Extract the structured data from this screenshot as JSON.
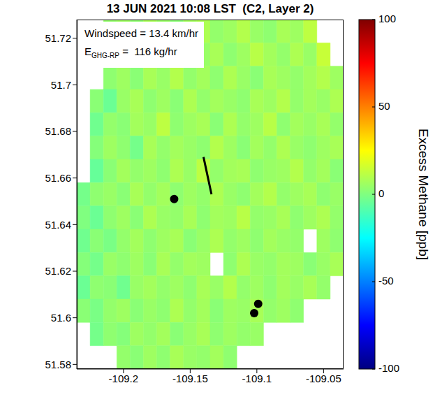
{
  "chart_data": {
    "type": "heatmap",
    "title": "13 JUN 2021 10:08 LST  (C2, Layer 2)",
    "annotations": [
      "Windspeed = 13.4 km/hr",
      {
        "text": "E",
        "subscript": "GHG-RP",
        "suffix": " =  116 kg/hr"
      }
    ],
    "xlim": [
      -109.235,
      -109.035
    ],
    "xticks": [
      -109.2,
      -109.15,
      -109.1,
      -109.05
    ],
    "ylim": [
      51.578,
      51.728
    ],
    "yticks": [
      51.58,
      51.6,
      51.62,
      51.64,
      51.66,
      51.68,
      51.7,
      51.72
    ],
    "grid": false,
    "cells": {
      "x": [
        -109.23,
        -109.22,
        -109.21,
        -109.2,
        -109.19,
        -109.18,
        -109.17,
        -109.16,
        -109.15,
        -109.14,
        -109.13,
        -109.12,
        -109.11,
        -109.1,
        -109.09,
        -109.08,
        -109.07,
        -109.06,
        -109.05,
        -109.04
      ],
      "y": [
        51.723,
        51.713,
        51.703,
        51.693,
        51.683,
        51.673,
        51.663,
        51.653,
        51.643,
        51.633,
        51.623,
        51.613,
        51.603,
        51.593,
        51.583
      ],
      "values": [
        [
          null,
          null,
          4,
          6,
          3,
          8,
          5,
          2,
          7,
          9,
          4,
          6,
          10,
          5,
          3,
          8,
          6,
          12,
          null,
          null
        ],
        [
          null,
          null,
          5,
          3,
          7,
          4,
          9,
          6,
          2,
          5,
          8,
          3,
          6,
          11,
          7,
          4,
          9,
          5,
          14,
          null
        ],
        [
          null,
          null,
          3,
          6,
          2,
          8,
          5,
          10,
          4,
          7,
          3,
          9,
          5,
          2,
          8,
          6,
          4,
          7,
          10,
          6
        ],
        [
          null,
          2,
          -4,
          5,
          8,
          3,
          6,
          2,
          9,
          4,
          7,
          5,
          3,
          8,
          6,
          10,
          4,
          7,
          5,
          9
        ],
        [
          null,
          -3,
          4,
          2,
          7,
          5,
          12,
          3,
          6,
          8,
          2,
          9,
          4,
          6,
          11,
          3,
          7,
          5,
          8,
          4
        ],
        [
          null,
          1,
          6,
          3,
          -2,
          8,
          4,
          7,
          5,
          3,
          10,
          6,
          2,
          7,
          4,
          9,
          5,
          3,
          6,
          8
        ],
        [
          null,
          -5,
          2,
          7,
          4,
          6,
          3,
          9,
          5,
          12,
          4,
          7,
          8,
          3,
          5,
          6,
          10,
          4,
          7,
          2
        ],
        [
          -2,
          3,
          5,
          2,
          8,
          4,
          7,
          3,
          6,
          4,
          9,
          5,
          3,
          7,
          10,
          4,
          6,
          8,
          3,
          5
        ],
        [
          0,
          -4,
          3,
          6,
          2,
          9,
          5,
          4,
          8,
          3,
          7,
          6,
          11,
          4,
          5,
          8,
          3,
          6,
          9,
          4
        ],
        [
          -3,
          2,
          -1,
          4,
          7,
          3,
          6,
          8,
          2,
          5,
          9,
          4,
          6,
          3,
          7,
          5,
          4,
          null,
          6,
          3
        ],
        [
          1,
          -2,
          5,
          3,
          6,
          2,
          8,
          4,
          7,
          6,
          null,
          3,
          9,
          5,
          4,
          7,
          6,
          2,
          5,
          8
        ],
        [
          -4,
          3,
          2,
          -3,
          5,
          7,
          4,
          6,
          3,
          8,
          5,
          10,
          4,
          6,
          3,
          7,
          5,
          8,
          4,
          null
        ],
        [
          2,
          -1,
          4,
          6,
          2,
          5,
          3,
          9,
          4,
          7,
          2,
          6,
          5,
          8,
          4,
          6,
          3,
          null,
          null,
          null
        ],
        [
          null,
          -2,
          3,
          1,
          6,
          4,
          7,
          2,
          5,
          8,
          3,
          6,
          4,
          5,
          null,
          null,
          null,
          null,
          null,
          null
        ],
        [
          null,
          null,
          null,
          4,
          2,
          6,
          3,
          8,
          5,
          4,
          7,
          3,
          null,
          null,
          null,
          null,
          null,
          null,
          null,
          null
        ]
      ]
    },
    "colorbar": {
      "label": "Excess Methane [ppb]",
      "range": [
        -100,
        100
      ],
      "ticks": [
        -100,
        -50,
        0,
        50,
        100
      ]
    },
    "points": {
      "x": [
        -109.162,
        -109.099,
        -109.102
      ],
      "y": [
        51.651,
        51.606,
        51.602
      ],
      "color": "#000000"
    },
    "segment": {
      "x": [
        -109.14,
        -109.134
      ],
      "y": [
        51.669,
        51.653
      ],
      "color": "#000000"
    }
  }
}
